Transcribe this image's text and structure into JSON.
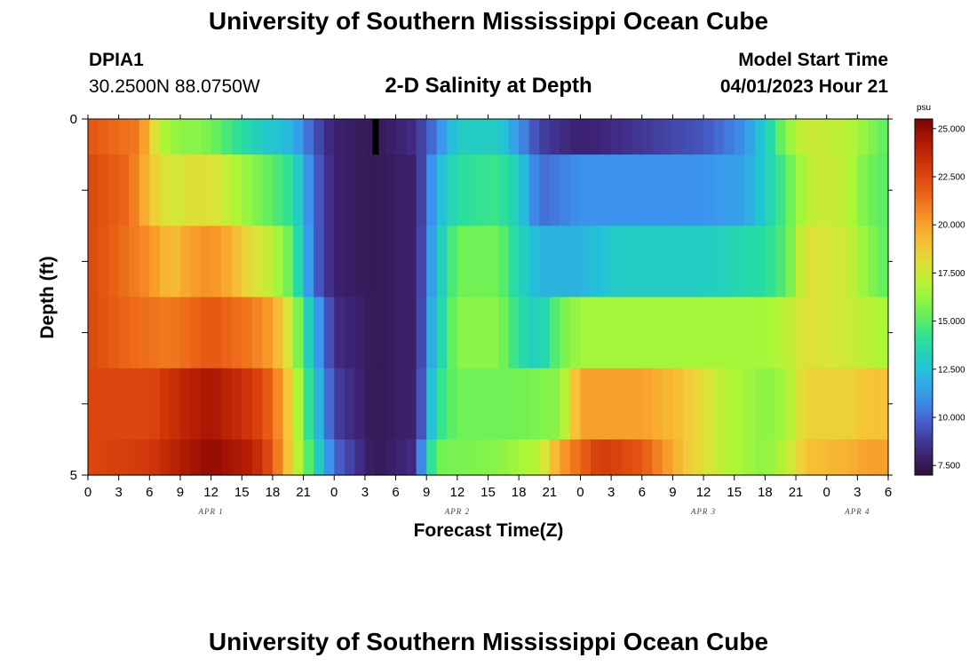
{
  "header": {
    "main_title": "University of Southern Mississippi Ocean Cube",
    "station_id": "DPIA1",
    "station_coords": "30.2500N  88.0750W",
    "chart_title": "2-D Salinity at Depth",
    "model_label": "Model Start Time",
    "model_time": "04/01/2023 Hour 21"
  },
  "footer": {
    "title": "University of Southern Mississippi Ocean Cube"
  },
  "chart_data": {
    "type": "heatmap",
    "title": "2-D Salinity at Depth",
    "xlabel": "Forecast Time(Z)",
    "ylabel": "Depth (ft)",
    "x_hours": [
      0,
      3,
      6,
      9,
      12,
      15,
      18,
      21,
      24,
      27,
      30,
      33,
      36,
      39,
      42,
      45,
      48,
      51,
      54,
      57,
      60,
      63,
      66,
      69,
      72,
      75,
      78
    ],
    "x_tick_labels": [
      "0",
      "3",
      "6",
      "9",
      "12",
      "15",
      "18",
      "21",
      "0",
      "3",
      "6",
      "9",
      "12",
      "15",
      "18",
      "21",
      "0",
      "3",
      "6",
      "9",
      "12",
      "15",
      "18",
      "21",
      "0",
      "3",
      "6"
    ],
    "xlim": [
      0,
      78
    ],
    "day_labels": [
      {
        "label": "APR 1",
        "hour": 12
      },
      {
        "label": "APR 2",
        "hour": 36
      },
      {
        "label": "APR 3",
        "hour": 60
      },
      {
        "label": "APR 4",
        "hour": 75
      }
    ],
    "y_tick_labels": [
      "0",
      "5"
    ],
    "ylim": [
      0,
      5
    ],
    "depth_layers": [
      0,
      0.5,
      1.5,
      2.5,
      3.5,
      4.5,
      5
    ],
    "colorbar": {
      "unit": "psu",
      "range": [
        7.0,
        25.5
      ],
      "tick_values": [
        25.0,
        22.5,
        20.0,
        17.5,
        15.0,
        12.5,
        10.0,
        7.5
      ],
      "tick_labels": [
        "25.000",
        "22.500",
        "20.000",
        "17.500",
        "15.000",
        "12.500",
        "10.000",
        "7.500"
      ]
    },
    "salinity_profiles": [
      {
        "depth_band": "0-0.5",
        "keys": [
          [
            0,
            22
          ],
          [
            5,
            21
          ],
          [
            6,
            19
          ],
          [
            7,
            17
          ],
          [
            9,
            16
          ],
          [
            11,
            16
          ],
          [
            13,
            15
          ],
          [
            15,
            14
          ],
          [
            17,
            13
          ],
          [
            20,
            12
          ],
          [
            22,
            9.5
          ],
          [
            24,
            8
          ],
          [
            28,
            7.5
          ],
          [
            32,
            8.5
          ],
          [
            34,
            10.5
          ],
          [
            36,
            13
          ],
          [
            40,
            13
          ],
          [
            42,
            11
          ],
          [
            44,
            9
          ],
          [
            48,
            8
          ],
          [
            56,
            9
          ],
          [
            60,
            9.5
          ],
          [
            64,
            11
          ],
          [
            66,
            13
          ],
          [
            68,
            16
          ],
          [
            70,
            17.5
          ],
          [
            74,
            17
          ],
          [
            76,
            16
          ],
          [
            78,
            15
          ]
        ]
      },
      {
        "depth_band": "0.5-1.5",
        "keys": [
          [
            0,
            22.5
          ],
          [
            4,
            21.5
          ],
          [
            6,
            19
          ],
          [
            8,
            17.5
          ],
          [
            10,
            18
          ],
          [
            12,
            18
          ],
          [
            14,
            17
          ],
          [
            16,
            16
          ],
          [
            18,
            15
          ],
          [
            20,
            14
          ],
          [
            22,
            10
          ],
          [
            24,
            8
          ],
          [
            28,
            7.5
          ],
          [
            32,
            8
          ],
          [
            34,
            12
          ],
          [
            36,
            14
          ],
          [
            40,
            14.5
          ],
          [
            42,
            13
          ],
          [
            44,
            10
          ],
          [
            48,
            11
          ],
          [
            60,
            11
          ],
          [
            64,
            11.5
          ],
          [
            66,
            13
          ],
          [
            68,
            15
          ],
          [
            70,
            17
          ],
          [
            72,
            17.5
          ],
          [
            74,
            17
          ],
          [
            76,
            15.5
          ],
          [
            78,
            15
          ]
        ]
      },
      {
        "depth_band": "1.5-2.5",
        "keys": [
          [
            0,
            22.5
          ],
          [
            6,
            20.5
          ],
          [
            8,
            19
          ],
          [
            10,
            20
          ],
          [
            12,
            20.5
          ],
          [
            14,
            19.5
          ],
          [
            16,
            18
          ],
          [
            18,
            17
          ],
          [
            20,
            15
          ],
          [
            22,
            10
          ],
          [
            24,
            8
          ],
          [
            28,
            7.5
          ],
          [
            32,
            8
          ],
          [
            34,
            12.5
          ],
          [
            36,
            15.5
          ],
          [
            40,
            15.5
          ],
          [
            42,
            13.5
          ],
          [
            44,
            12
          ],
          [
            48,
            12
          ],
          [
            52,
            13
          ],
          [
            60,
            13
          ],
          [
            66,
            14
          ],
          [
            68,
            15
          ],
          [
            70,
            18
          ],
          [
            74,
            17.5
          ],
          [
            76,
            16
          ],
          [
            78,
            15
          ]
        ]
      },
      {
        "depth_band": "2.5-3.5",
        "keys": [
          [
            0,
            22.5
          ],
          [
            4,
            21.5
          ],
          [
            8,
            21
          ],
          [
            12,
            22
          ],
          [
            16,
            21
          ],
          [
            18,
            20
          ],
          [
            20,
            17
          ],
          [
            22,
            12
          ],
          [
            24,
            8.5
          ],
          [
            28,
            7.5
          ],
          [
            32,
            8
          ],
          [
            34,
            13
          ],
          [
            36,
            16
          ],
          [
            40,
            16
          ],
          [
            42,
            14
          ],
          [
            44,
            13
          ],
          [
            46,
            15.5
          ],
          [
            48,
            16.5
          ],
          [
            60,
            16.5
          ],
          [
            66,
            16.5
          ],
          [
            68,
            17
          ],
          [
            70,
            18
          ],
          [
            74,
            17.5
          ],
          [
            76,
            17
          ],
          [
            78,
            16.5
          ]
        ]
      },
      {
        "depth_band": "3.5-4.5",
        "keys": [
          [
            0,
            22.5
          ],
          [
            6,
            22.5
          ],
          [
            10,
            24
          ],
          [
            12,
            24.5
          ],
          [
            16,
            23
          ],
          [
            18,
            21.5
          ],
          [
            20,
            18
          ],
          [
            22,
            13
          ],
          [
            24,
            9
          ],
          [
            28,
            7.5
          ],
          [
            32,
            8
          ],
          [
            34,
            14
          ],
          [
            36,
            15.5
          ],
          [
            42,
            15.5
          ],
          [
            46,
            16
          ],
          [
            48,
            20
          ],
          [
            54,
            20
          ],
          [
            58,
            19
          ],
          [
            62,
            17
          ],
          [
            66,
            16
          ],
          [
            68,
            16.5
          ],
          [
            70,
            18.5
          ],
          [
            74,
            18.5
          ],
          [
            76,
            19
          ],
          [
            78,
            19
          ]
        ]
      },
      {
        "depth_band": "4.5-5",
        "keys": [
          [
            0,
            22.5
          ],
          [
            6,
            23
          ],
          [
            10,
            24.5
          ],
          [
            12,
            25
          ],
          [
            16,
            24
          ],
          [
            18,
            22
          ],
          [
            20,
            18
          ],
          [
            22,
            14
          ],
          [
            24,
            10
          ],
          [
            28,
            7.5
          ],
          [
            32,
            8.5
          ],
          [
            33,
            13
          ],
          [
            34,
            15.5
          ],
          [
            40,
            16
          ],
          [
            44,
            17
          ],
          [
            46,
            20
          ],
          [
            50,
            23
          ],
          [
            54,
            22
          ],
          [
            58,
            19
          ],
          [
            62,
            17
          ],
          [
            66,
            16
          ],
          [
            68,
            17
          ],
          [
            70,
            19
          ],
          [
            74,
            19.5
          ],
          [
            76,
            20
          ],
          [
            78,
            20
          ]
        ]
      }
    ],
    "notes": "Salinity in psu along time (hours from model start 04/01 00Z) for each depth band; values estimated from colour scale."
  }
}
